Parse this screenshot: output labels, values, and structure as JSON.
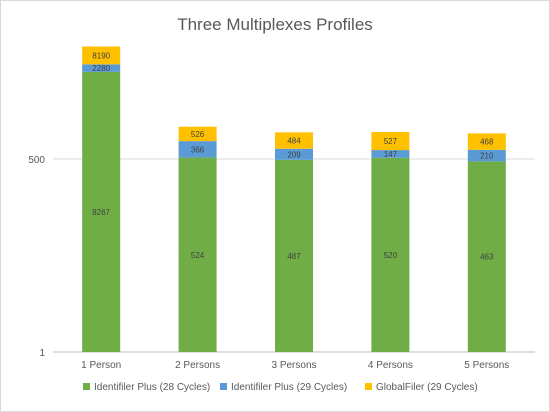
{
  "chart_data": {
    "type": "bar",
    "stacked": true,
    "title": "Three Multiplexes Profiles",
    "xlabel": "",
    "ylabel": "",
    "yscale": "log",
    "ylim": [
      1,
      20000
    ],
    "yticks": [
      1,
      500
    ],
    "ytick_labels": [
      "1",
      "500"
    ],
    "grid": true,
    "legend_position": "bottom",
    "categories": [
      "1 Person",
      "2 Persons",
      "3 Persons",
      "4 Persons",
      "5 Persons"
    ],
    "series": [
      {
        "name": "Identifiler Plus (28 Cycles)",
        "color": "#70ad47",
        "values": [
          8267,
          524,
          487,
          520,
          463
        ]
      },
      {
        "name": "Identifiler Plus (29 Cycles)",
        "color": "#5b9bd5",
        "values": [
          2280,
          366,
          209,
          147,
          210
        ]
      },
      {
        "name": "GlobalFiler (29 Cycles)",
        "color": "#ffc000",
        "values": [
          8190,
          526,
          484,
          527,
          468
        ]
      }
    ]
  }
}
